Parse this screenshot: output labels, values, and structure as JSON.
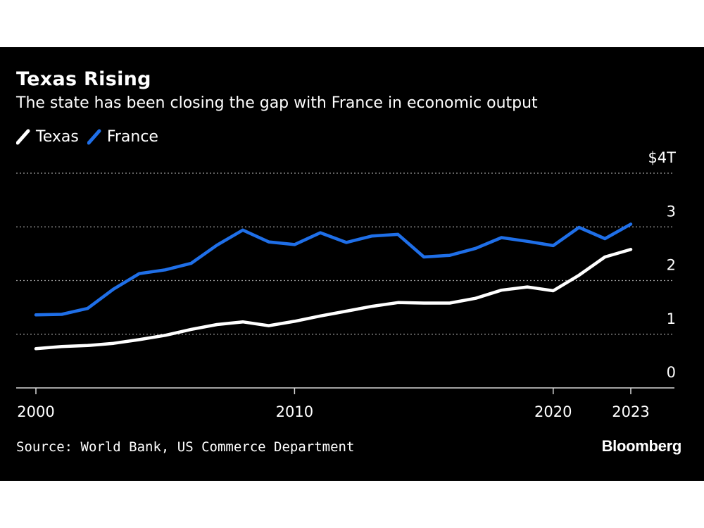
{
  "chart_data": {
    "type": "line",
    "title": "Texas Rising",
    "subtitle": "The state has been closing the gap with France in economic output",
    "x": [
      2000,
      2001,
      2002,
      2003,
      2004,
      2005,
      2006,
      2007,
      2008,
      2009,
      2010,
      2011,
      2012,
      2013,
      2014,
      2015,
      2016,
      2017,
      2018,
      2019,
      2020,
      2021,
      2022,
      2023
    ],
    "series": [
      {
        "name": "Texas",
        "color": "#ffffff",
        "values": [
          0.73,
          0.77,
          0.79,
          0.83,
          0.9,
          0.98,
          1.09,
          1.18,
          1.23,
          1.16,
          1.24,
          1.34,
          1.43,
          1.52,
          1.59,
          1.58,
          1.58,
          1.67,
          1.82,
          1.88,
          1.81,
          2.1,
          2.44,
          2.58
        ]
      },
      {
        "name": "France",
        "color": "#1f6fe8",
        "values": [
          1.36,
          1.37,
          1.48,
          1.84,
          2.13,
          2.2,
          2.32,
          2.66,
          2.94,
          2.72,
          2.67,
          2.89,
          2.71,
          2.83,
          2.86,
          2.44,
          2.47,
          2.6,
          2.8,
          2.73,
          2.65,
          2.99,
          2.78,
          3.05
        ]
      }
    ],
    "ylim": [
      0,
      4
    ],
    "yticks": [
      0,
      1,
      2,
      3,
      4
    ],
    "ytick_labels": [
      "0",
      "1",
      "2",
      "3",
      "$4T"
    ],
    "xlim": [
      2000,
      2023
    ],
    "xticks": [
      2000,
      2010,
      2020,
      2023
    ],
    "xtick_labels": [
      "2000",
      "2010",
      "2020",
      "2023"
    ],
    "xlabel": "",
    "ylabel": "",
    "grid": true,
    "legend": "top-left"
  },
  "footer": {
    "source": "Source: World Bank, US Commerce Department",
    "brand": "Bloomberg"
  }
}
